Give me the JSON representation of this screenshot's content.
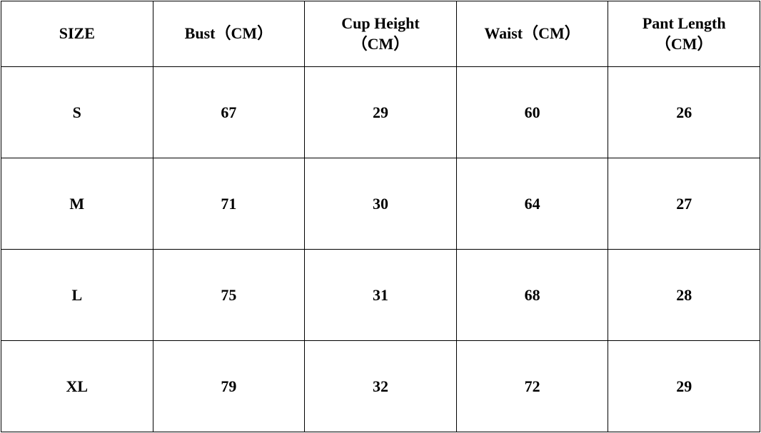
{
  "table": {
    "type": "table",
    "columns": [
      {
        "label_line1": "SIZE",
        "label_line2": ""
      },
      {
        "label_line1": "Bust（CM）",
        "label_line2": ""
      },
      {
        "label_line1": "Cup Height",
        "label_line2": "（CM）"
      },
      {
        "label_line1": "Waist（CM）",
        "label_line2": ""
      },
      {
        "label_line1": "Pant Length",
        "label_line2": "（CM）"
      }
    ],
    "rows": [
      {
        "size": "S",
        "bust": "67",
        "cup_height": "29",
        "waist": "60",
        "pant_length": "26"
      },
      {
        "size": "M",
        "bust": "71",
        "cup_height": "30",
        "waist": "64",
        "pant_length": "27"
      },
      {
        "size": "L",
        "bust": "75",
        "cup_height": "31",
        "waist": "68",
        "pant_length": "28"
      },
      {
        "size": "XL",
        "bust": "79",
        "cup_height": "32",
        "waist": "72",
        "pant_length": "29"
      }
    ],
    "style": {
      "border_color": "#000000",
      "text_color": "#000000",
      "background_color": "#ffffff",
      "font_weight": "bold",
      "header_fontsize": 22,
      "body_fontsize": 22,
      "header_row_height": 92,
      "body_row_height": 128
    }
  }
}
